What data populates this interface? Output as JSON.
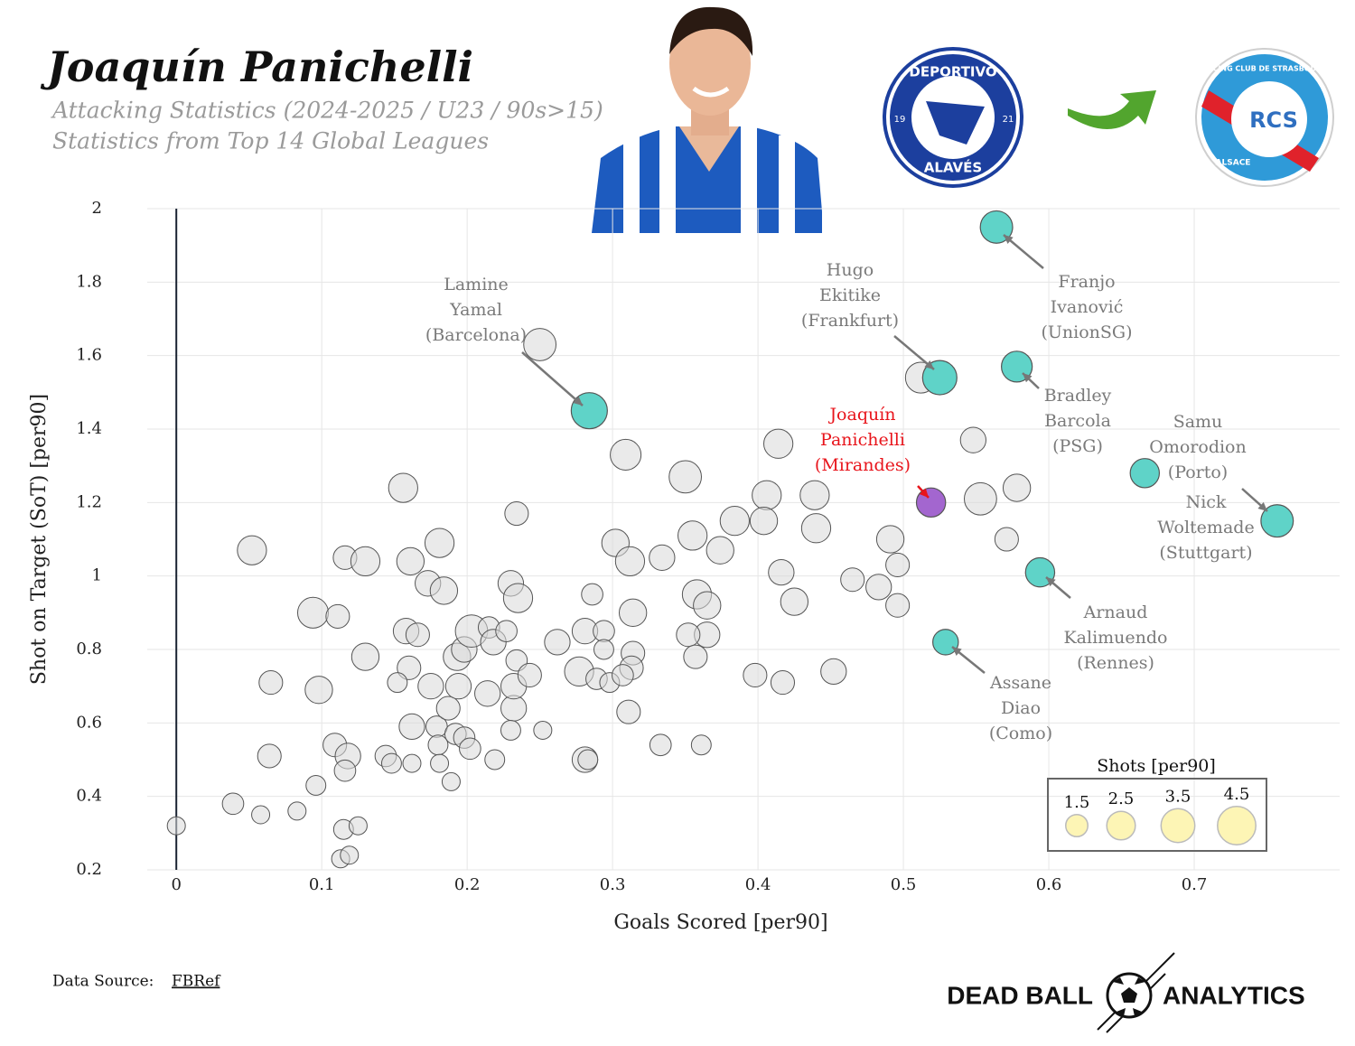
{
  "chart_data": {
    "type": "bubble",
    "title": "Joaquín Panichelli",
    "subtitle": [
      "Attacking Statistics (2024-2025 / U23 / 90s>15)",
      "Statistics from Top 14 Global Leagues"
    ],
    "x_label": "Goals Scored [per90]",
    "y_label": "Shot on Target (SoT) [per90]",
    "xlim": [
      -0.02,
      0.8
    ],
    "ylim": [
      0.2,
      2.0
    ],
    "xticks": [
      0,
      0.1,
      0.2,
      0.3,
      0.4,
      0.5,
      0.6,
      0.7
    ],
    "yticks": [
      0.2,
      0.4,
      0.6,
      0.8,
      1,
      1.2,
      1.4,
      1.6,
      1.8,
      2
    ],
    "grid": true,
    "zero_line": true,
    "others": {
      "color": "#d9d9d9",
      "x": [
        0,
        0.052,
        0.039,
        0.058,
        0.083,
        0.065,
        0.064,
        0.094,
        0.098,
        0.096,
        0.111,
        0.116,
        0.13,
        0.109,
        0.118,
        0.116,
        0.115,
        0.125,
        0.113,
        0.119,
        0.13,
        0.156,
        0.161,
        0.158,
        0.166,
        0.16,
        0.152,
        0.144,
        0.148,
        0.162,
        0.162,
        0.173,
        0.181,
        0.184,
        0.175,
        0.179,
        0.18,
        0.181,
        0.187,
        0.189,
        0.193,
        0.198,
        0.194,
        0.192,
        0.198,
        0.202,
        0.203,
        0.215,
        0.218,
        0.214,
        0.232,
        0.219,
        0.227,
        0.23,
        0.235,
        0.234,
        0.232,
        0.234,
        0.23,
        0.243,
        0.252,
        0.25,
        0.262,
        0.281,
        0.286,
        0.294,
        0.294,
        0.277,
        0.289,
        0.298,
        0.281,
        0.283,
        0.302,
        0.312,
        0.309,
        0.314,
        0.314,
        0.313,
        0.307,
        0.311,
        0.334,
        0.333,
        0.35,
        0.355,
        0.358,
        0.365,
        0.365,
        0.352,
        0.357,
        0.374,
        0.384,
        0.361,
        0.398,
        0.406,
        0.404,
        0.414,
        0.416,
        0.417,
        0.425,
        0.439,
        0.44,
        0.452,
        0.465,
        0.483,
        0.491,
        0.496,
        0.496,
        0.512,
        0.548,
        0.553,
        0.571,
        0.578
      ],
      "y": [
        0.32,
        1.07,
        0.38,
        0.35,
        0.36,
        0.71,
        0.51,
        0.9,
        0.69,
        0.43,
        0.89,
        1.05,
        1.04,
        0.54,
        0.51,
        0.47,
        0.31,
        0.32,
        0.23,
        0.24,
        0.78,
        1.24,
        1.04,
        0.85,
        0.84,
        0.75,
        0.71,
        0.51,
        0.49,
        0.59,
        0.49,
        0.98,
        1.09,
        0.96,
        0.7,
        0.59,
        0.54,
        0.49,
        0.64,
        0.44,
        0.78,
        0.8,
        0.7,
        0.57,
        0.56,
        0.53,
        0.85,
        0.86,
        0.82,
        0.68,
        0.64,
        0.5,
        0.85,
        0.98,
        0.94,
        1.17,
        0.7,
        0.77,
        0.58,
        0.73,
        0.58,
        1.63,
        0.82,
        0.85,
        0.95,
        0.85,
        0.8,
        0.74,
        0.72,
        0.71,
        0.5,
        0.5,
        1.09,
        1.04,
        1.33,
        0.9,
        0.79,
        0.75,
        0.73,
        0.63,
        1.05,
        0.54,
        1.27,
        1.11,
        0.95,
        0.92,
        0.84,
        0.84,
        0.78,
        1.07,
        1.15,
        0.54,
        0.73,
        1.22,
        1.15,
        1.36,
        1.01,
        0.71,
        0.93,
        1.22,
        1.13,
        0.74,
        0.99,
        0.97,
        1.1,
        1.03,
        0.92,
        1.54,
        1.37,
        1.21,
        1.1,
        1.24
      ],
      "size": [
        1.0,
        2.6,
        1.4,
        1.0,
        1.0,
        1.7,
        1.7,
        2.9,
        2.3,
        1.2,
        1.7,
        1.7,
        2.6,
        1.7,
        2.0,
        1.4,
        1.2,
        1.0,
        1.0,
        1.0,
        2.3,
        2.6,
        2.3,
        2.0,
        1.7,
        1.7,
        1.2,
        1.4,
        1.2,
        2.0,
        1.0,
        2.0,
        2.6,
        2.3,
        2.0,
        1.4,
        1.2,
        1.0,
        1.7,
        1.0,
        2.3,
        2.0,
        2.0,
        1.4,
        1.4,
        1.4,
        3.2,
        1.4,
        2.0,
        2.0,
        2.0,
        1.2,
        1.4,
        2.0,
        2.6,
        1.7,
        2.0,
        1.4,
        1.2,
        1.7,
        1.0,
        3.2,
        2.0,
        2.0,
        1.4,
        1.4,
        1.2,
        2.6,
        1.4,
        1.2,
        2.0,
        1.2,
        2.3,
        2.6,
        2.9,
        2.3,
        1.7,
        1.7,
        1.4,
        1.7,
        2.0,
        1.4,
        3.2,
        2.6,
        2.6,
        2.3,
        2.0,
        1.7,
        1.7,
        2.3,
        2.6,
        1.2,
        1.7,
        2.6,
        2.3,
        2.6,
        2.0,
        1.7,
        2.3,
        2.6,
        2.6,
        2.0,
        1.7,
        2.0,
        2.3,
        1.7,
        1.7,
        2.9,
        2.0,
        3.2,
        1.7,
        2.3
      ]
    },
    "highlights": {
      "color": "#5fd3c8",
      "label_color": "#7a7a7a",
      "points": [
        {
          "x": 0.284,
          "y": 1.45,
          "size": 4.0,
          "label": [
            "Lamine",
            "Yamal",
            "(Barcelona)"
          ]
        },
        {
          "x": 0.525,
          "y": 1.54,
          "size": 3.6,
          "label": [
            "Hugo",
            "Ekitike",
            "(Frankfurt)"
          ]
        },
        {
          "x": 0.564,
          "y": 1.95,
          "size": 3.2,
          "label": [
            "Franjo",
            "Ivanović",
            "(UnionSG)"
          ]
        },
        {
          "x": 0.578,
          "y": 1.57,
          "size": 2.9,
          "label": [
            "Bradley",
            "Barcola",
            "(PSG)"
          ]
        },
        {
          "x": 0.666,
          "y": 1.28,
          "size": 2.6,
          "label": [
            "Samu",
            "Omorodion",
            "(Porto)"
          ]
        },
        {
          "x": 0.757,
          "y": 1.15,
          "size": 3.2,
          "label": [
            "Nick",
            "Woltemade",
            "(Stuttgart)"
          ]
        },
        {
          "x": 0.594,
          "y": 1.01,
          "size": 2.6,
          "label": [
            "Arnaud",
            "Kalimuendo",
            "(Rennes)"
          ]
        },
        {
          "x": 0.529,
          "y": 0.82,
          "size": 2.0,
          "label": [
            "Assane",
            "Diao",
            "(Como)"
          ]
        }
      ]
    },
    "featured": {
      "color": "#a366cf",
      "label_color": "#e8141b",
      "points": [
        {
          "x": 0.519,
          "y": 1.2,
          "size": 2.6,
          "label": [
            "Joaquín",
            "Panichelli",
            "(Mirandes)"
          ]
        }
      ]
    },
    "size_legend": {
      "title": "Shots [per90]",
      "values": [
        1.5,
        2.5,
        3.5,
        4.5
      ],
      "color": "#fdf5b5"
    }
  },
  "logos": {
    "from": {
      "top": "DEPORTIVO",
      "bottom": "ALAVÉS",
      "left": "19",
      "right": "21"
    },
    "to": {
      "top": "RACING CLUB DE STRASBOURG",
      "bottom": "ALSACE",
      "mark": "RCS"
    }
  },
  "footer": {
    "source_prefix": "Data Source:",
    "source_link": "FBRef",
    "brand_left": "DEAD BALL",
    "brand_right": "ANALYTICS"
  }
}
